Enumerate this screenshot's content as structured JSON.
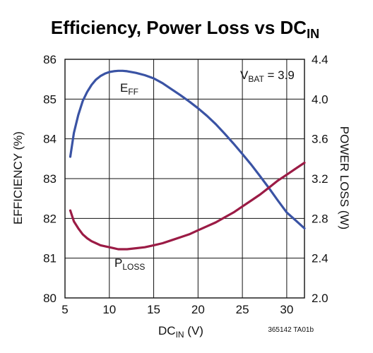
{
  "chart_data": {
    "type": "line",
    "title": "Efficiency, Power Loss vs DC",
    "title_sub": "IN",
    "xlabel": "DC",
    "xlabel_sub": "IN",
    "xlabel_unit": " (V)",
    "ylabel_left": "EFFICIENCY (%)",
    "ylabel_right": "POWER LOSS (W)",
    "xlim": [
      5,
      32
    ],
    "ylim_left": [
      80,
      86
    ],
    "ylim_right": [
      2.0,
      4.4
    ],
    "x_ticks": [
      5,
      10,
      15,
      20,
      25,
      30
    ],
    "y_left_ticks": [
      80,
      81,
      82,
      83,
      84,
      85,
      86
    ],
    "y_right_ticks": [
      "2.0",
      "2.4",
      "2.8",
      "3.2",
      "3.6",
      "4.0",
      "4.4"
    ],
    "grid": true,
    "annotation": {
      "main": "V",
      "sub": "BAT",
      "rest": " = 3.9"
    },
    "figure_id": "365142 TA01b",
    "series": [
      {
        "name": "E",
        "name_sub": "FF",
        "axis": "left",
        "color": "#3a53a4",
        "x": [
          5.6,
          6,
          6.5,
          7,
          7.5,
          8,
          8.5,
          9,
          9.5,
          10,
          10.5,
          11,
          11.5,
          12,
          13,
          14,
          15,
          16,
          17,
          18,
          19,
          20,
          21,
          22,
          23,
          24,
          25,
          26,
          27,
          28,
          29,
          30,
          31,
          32
        ],
        "values": [
          83.55,
          84.15,
          84.6,
          84.95,
          85.18,
          85.36,
          85.49,
          85.58,
          85.64,
          85.68,
          85.7,
          85.71,
          85.71,
          85.7,
          85.66,
          85.6,
          85.52,
          85.4,
          85.25,
          85.1,
          84.94,
          84.77,
          84.58,
          84.37,
          84.13,
          83.88,
          83.62,
          83.35,
          83.06,
          82.76,
          82.45,
          82.15,
          81.95,
          81.75
        ]
      },
      {
        "name": "P",
        "name_sub": "LOSS",
        "axis": "right",
        "color": "#9b1b45",
        "x": [
          5.6,
          6,
          6.5,
          7,
          7.5,
          8,
          8.5,
          9,
          9.5,
          10,
          10.5,
          11,
          11.5,
          12,
          13,
          14,
          15,
          16,
          17,
          18,
          19,
          20,
          21,
          22,
          23,
          24,
          25,
          26,
          27,
          28,
          29,
          30,
          31,
          32
        ],
        "values": [
          2.88,
          2.77,
          2.7,
          2.64,
          2.6,
          2.57,
          2.55,
          2.53,
          2.52,
          2.51,
          2.5,
          2.49,
          2.49,
          2.49,
          2.5,
          2.51,
          2.53,
          2.55,
          2.58,
          2.61,
          2.64,
          2.68,
          2.72,
          2.76,
          2.81,
          2.86,
          2.92,
          2.98,
          3.04,
          3.11,
          3.18,
          3.24,
          3.3,
          3.36
        ]
      }
    ]
  }
}
